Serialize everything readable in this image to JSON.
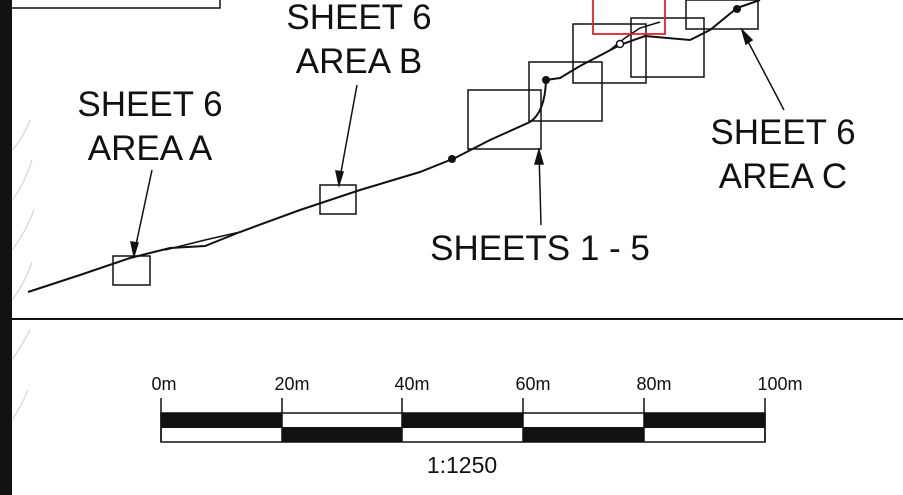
{
  "colors": {
    "ink": "#111111",
    "highlight": "#e8202a",
    "background": "#ffffff"
  },
  "labels": {
    "sheet6_area_a": {
      "line1": "SHEET 6",
      "line2": "AREA A"
    },
    "sheet6_area_b": {
      "line1": "SHEET 6",
      "line2": "AREA B"
    },
    "sheet6_area_c": {
      "line1": "SHEET 6",
      "line2": "AREA C"
    },
    "sheets_1_5": "SHEETS 1 - 5"
  },
  "scale_bar": {
    "ticks": [
      "0m",
      "20m",
      "40m",
      "60m",
      "80m",
      "100m"
    ],
    "ratio": "1:1250"
  }
}
